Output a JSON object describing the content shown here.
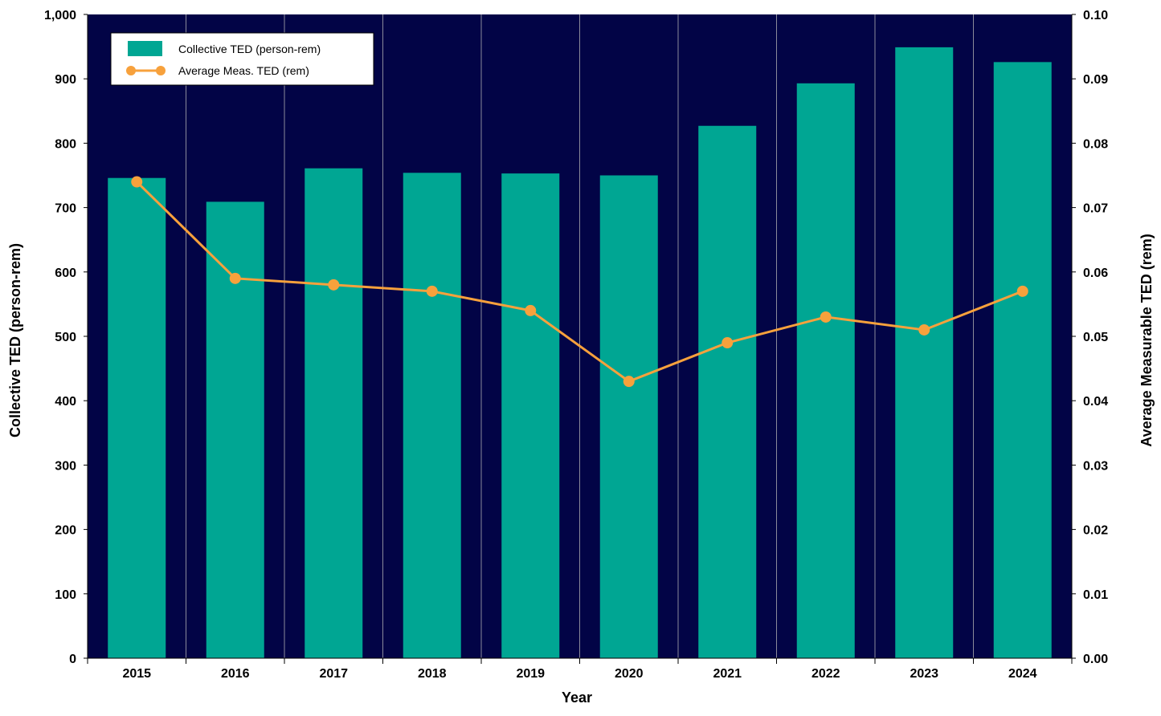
{
  "chart_data": {
    "type": "bar",
    "title": "",
    "xlabel": "Year",
    "ylabel": "Collective TED (person-rem)",
    "y2label": "Average Measurable TED (rem)",
    "categories": [
      "2015",
      "2016",
      "2017",
      "2018",
      "2019",
      "2020",
      "2021",
      "2022",
      "2023",
      "2024"
    ],
    "series": [
      {
        "name": "Collective TED (person-rem)",
        "type": "bar",
        "axis": "left",
        "color": "#00A693",
        "values": [
          746,
          709,
          761,
          754,
          753,
          750,
          827,
          893,
          949,
          926
        ]
      },
      {
        "name": "Average Meas. TED (rem)",
        "type": "line",
        "axis": "right",
        "color": "#F7A13C",
        "values": [
          0.074,
          0.059,
          0.058,
          0.057,
          0.054,
          0.043,
          0.049,
          0.053,
          0.051,
          0.057
        ]
      }
    ],
    "ylim": [
      0,
      1000
    ],
    "y2lim": [
      0,
      0.1
    ],
    "yticks": [
      "0",
      "100",
      "200",
      "300",
      "400",
      "500",
      "600",
      "700",
      "800",
      "900",
      "1,000"
    ],
    "y2ticks": [
      "0.00",
      "0.01",
      "0.02",
      "0.03",
      "0.04",
      "0.05",
      "0.06",
      "0.07",
      "0.08",
      "0.09",
      "0.10"
    ],
    "legend_position": "top-left",
    "plot_background": "#020446",
    "grid": "vertical separators between categories"
  }
}
